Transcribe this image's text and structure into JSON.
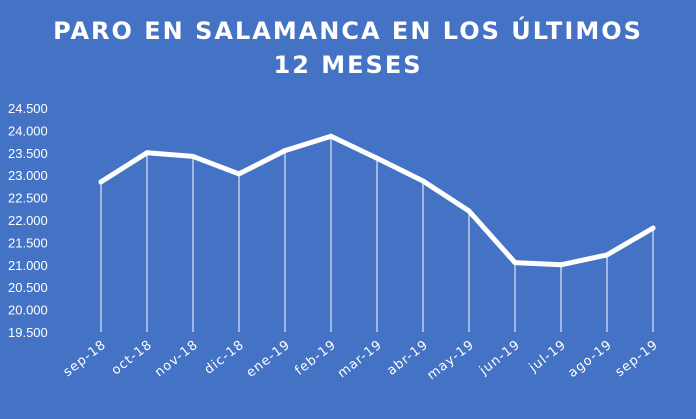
{
  "title_line1": "PARO EN SALAMANCA  EN LOS ÚLTIMOS",
  "title_line2": "12 MESES",
  "colors": {
    "background": "#4472C4",
    "line": "#ffffff",
    "drop_lines": "#ffffff",
    "text": "#ffffff"
  },
  "chart_data": {
    "type": "line",
    "categories": [
      "sep-18",
      "oct-18",
      "nov-18",
      "dic-18",
      "ene-19",
      "feb-19",
      "mar-19",
      "abr-19",
      "may-19",
      "jun-19",
      "jul-19",
      "ago-19",
      "sep-19"
    ],
    "series": [
      {
        "values": [
          22850,
          23500,
          23420,
          23030,
          23550,
          23870,
          23380,
          22870,
          22200,
          21050,
          21000,
          21220,
          21820
        ]
      }
    ],
    "title": "PARO EN SALAMANCA  EN LOS ÚLTIMOS 12 MESES",
    "xlabel": "",
    "ylabel": "",
    "ylim": [
      19500,
      24500
    ],
    "yticks": [
      "19.500",
      "20.000",
      "20.500",
      "21.000",
      "21.500",
      "22.000",
      "22.500",
      "23.000",
      "23.500",
      "24.000",
      "24.500"
    ],
    "grid": false,
    "drop_lines": true,
    "legend": "none"
  }
}
